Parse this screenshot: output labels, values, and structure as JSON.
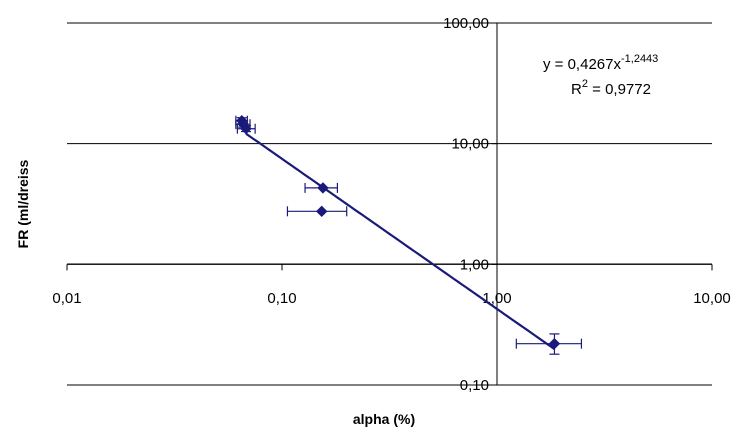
{
  "chart_data": {
    "type": "scatter",
    "xlabel": "alpha (%)",
    "ylabel": "FR (ml/dreiss",
    "x_scale": "log",
    "y_scale": "log",
    "xlim": [
      0.01,
      10
    ],
    "ylim": [
      0.1,
      100
    ],
    "x_ticks": [
      "0,01",
      "0,10",
      "1,00",
      "10,00"
    ],
    "y_ticks": [
      "0,10",
      "1,00",
      "10,00",
      "100,00"
    ],
    "grid": "horizontal",
    "colors": {
      "series": "#1a1a7a",
      "grid": "#000000"
    },
    "points": [
      {
        "x": 0.065,
        "y": 15.5,
        "xerr": [
          0.061,
          0.069
        ],
        "yerr": [
          14.6,
          16.4
        ]
      },
      {
        "x": 0.066,
        "y": 14.5,
        "xerr": [
          0.061,
          0.071
        ],
        "yerr": [
          13.7,
          15.4
        ]
      },
      {
        "x": 0.068,
        "y": 13.3,
        "xerr": [
          0.062,
          0.075
        ],
        "yerr": [
          12.6,
          14.1
        ]
      },
      {
        "x": 0.155,
        "y": 4.3,
        "xerr": [
          0.128,
          0.181
        ]
      },
      {
        "x": 0.153,
        "y": 2.75,
        "xerr": [
          0.106,
          0.2
        ]
      },
      {
        "x": 1.85,
        "y": 0.22,
        "xerr": [
          1.23,
          2.47
        ],
        "yerr": [
          0.18,
          0.265
        ]
      }
    ],
    "trendline": {
      "equation_prefix": "y = 0,4267x",
      "equation_exponent": "-1,2443",
      "r2_prefix": "R",
      "r2_sup": "2",
      "r2_value": " = 0,9772",
      "a": 0.4267,
      "b": -1.2443,
      "x_range": [
        0.068,
        1.85
      ]
    }
  }
}
